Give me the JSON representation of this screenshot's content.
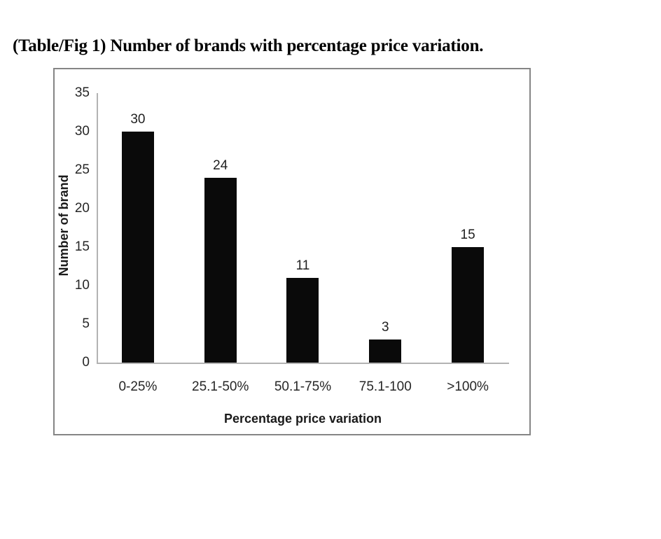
{
  "caption": "(Table/Fig 1) Number of brands with percentage price variation.",
  "chart_data": {
    "type": "bar",
    "categories": [
      "0-25%",
      "25.1-50%",
      "50.1-75%",
      "75.1-100",
      ">100%"
    ],
    "values": [
      30,
      24,
      11,
      3,
      15
    ],
    "title": "",
    "xlabel": "Percentage price variation",
    "ylabel": "Number of brand",
    "ylim": [
      0,
      35
    ],
    "yticks": [
      0,
      5,
      10,
      15,
      20,
      25,
      30,
      35
    ],
    "grid": false,
    "legend": false,
    "data_labels": true,
    "colors": {
      "bar": "#0a0a0a",
      "axis_line": "#b3b3b3",
      "frame_border": "#858585",
      "tick_text": "#262626",
      "axis_title_text": "#1a1a1a",
      "caption_text": "#000000",
      "background": "#ffffff"
    }
  }
}
